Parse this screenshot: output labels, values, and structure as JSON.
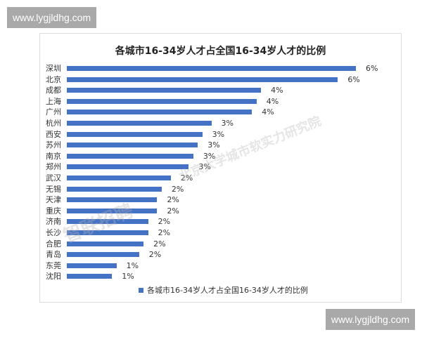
{
  "watermarks": {
    "top_badge": "www.lygjldhg.com",
    "bottom_badge": "www.lygjldhg.com",
    "overlay_left": "智联招聘",
    "overlay_right": "北京大学城市软实力研究院"
  },
  "colors": {
    "bar": "#4472c4"
  },
  "chart_data": {
    "type": "bar",
    "orientation": "horizontal",
    "title": "各城市16-34岁人才占全国16-34岁人才的比例",
    "categories": [
      "深圳",
      "北京",
      "成都",
      "上海",
      "广州",
      "杭州",
      "西安",
      "苏州",
      "南京",
      "郑州",
      "武汉",
      "无锡",
      "天津",
      "重庆",
      "济南",
      "长沙",
      "合肥",
      "青岛",
      "东莞",
      "沈阳"
    ],
    "values": [
      6.4,
      6.0,
      4.3,
      4.2,
      4.1,
      3.2,
      3.0,
      2.9,
      2.8,
      2.7,
      2.3,
      2.1,
      2.0,
      2.0,
      1.8,
      1.8,
      1.7,
      1.6,
      1.1,
      1.0
    ],
    "data_labels": [
      "6%",
      "6%",
      "4%",
      "4%",
      "4%",
      "3%",
      "3%",
      "3%",
      "3%",
      "3%",
      "2%",
      "2%",
      "2%",
      "2%",
      "2%",
      "2%",
      "2%",
      "2%",
      "1%",
      "1%"
    ],
    "legend": [
      "各城市16-34岁人才占全国16-34岁人才的比例"
    ],
    "legend_position": "bottom",
    "xlabel": "",
    "ylabel": "",
    "grid": false
  }
}
